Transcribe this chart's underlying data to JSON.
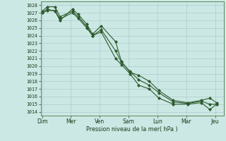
{
  "bg_color": "#cce8e4",
  "grid_color": "#aacccc",
  "line_color": "#2d5a2d",
  "marker_color": "#2d5a2d",
  "xlabel": "Pression niveau de la mer( hPa )",
  "ylim": [
    1013.5,
    1028.5
  ],
  "yticks": [
    1014,
    1015,
    1016,
    1017,
    1018,
    1019,
    1020,
    1021,
    1022,
    1023,
    1024,
    1025,
    1026,
    1027,
    1028
  ],
  "xtick_labels": [
    "Dim",
    "Mer",
    "Ven",
    "Sam",
    "Lun",
    "Mar",
    "Jeu"
  ],
  "xtick_positions": [
    0,
    1,
    2,
    3,
    4,
    5,
    6
  ],
  "xlim": [
    -0.05,
    6.3
  ],
  "series1_x": [
    0.0,
    0.18,
    0.45,
    0.62,
    1.05,
    1.25,
    1.55,
    1.75,
    2.05,
    2.55,
    2.75,
    3.05,
    3.35,
    3.72,
    4.05,
    4.55,
    5.05,
    5.52,
    5.82,
    6.05
  ],
  "series1_y": [
    1027.0,
    1027.5,
    1027.2,
    1026.0,
    1027.5,
    1026.8,
    1025.5,
    1024.2,
    1025.3,
    1023.2,
    1020.6,
    1019.2,
    1018.8,
    1018.0,
    1016.8,
    1015.5,
    1015.2,
    1015.5,
    1015.8,
    1015.2
  ],
  "series2_x": [
    0.0,
    0.18,
    0.45,
    0.62,
    1.05,
    1.25,
    1.55,
    1.75,
    2.05,
    2.55,
    2.75,
    3.05,
    3.35,
    3.72,
    4.05,
    4.55,
    5.05,
    5.52,
    5.82,
    6.05
  ],
  "series2_y": [
    1027.2,
    1027.8,
    1027.8,
    1026.5,
    1027.2,
    1026.5,
    1025.2,
    1024.0,
    1024.5,
    1021.0,
    1020.2,
    1019.0,
    1017.5,
    1017.0,
    1015.8,
    1015.0,
    1015.0,
    1015.2,
    1014.3,
    1015.0
  ],
  "series3_x": [
    0.0,
    0.18,
    0.45,
    0.62,
    1.05,
    1.25,
    1.55,
    1.75,
    2.05,
    2.55,
    2.75,
    3.05,
    3.35,
    3.72,
    4.05,
    4.55,
    5.05,
    5.52,
    5.82,
    6.05
  ],
  "series3_y": [
    1027.0,
    1027.3,
    1027.3,
    1026.2,
    1027.0,
    1026.3,
    1025.0,
    1024.0,
    1024.8,
    1022.0,
    1020.5,
    1019.3,
    1018.2,
    1017.5,
    1016.5,
    1015.3,
    1015.1,
    1015.4,
    1015.0,
    1015.0
  ]
}
